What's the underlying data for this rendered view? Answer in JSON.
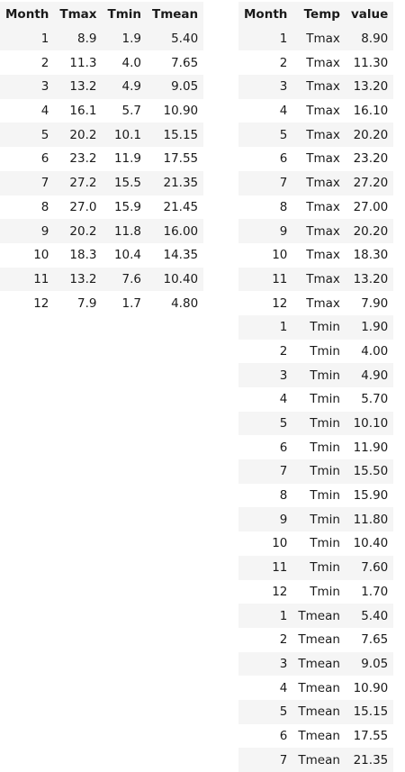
{
  "wide_table": {
    "columns": [
      "Month",
      "Tmax",
      "Tmin",
      "Tmean"
    ],
    "rows": [
      [
        "1",
        "8.9",
        "1.9",
        "5.40"
      ],
      [
        "2",
        "11.3",
        "4.0",
        "7.65"
      ],
      [
        "3",
        "13.2",
        "4.9",
        "9.05"
      ],
      [
        "4",
        "16.1",
        "5.7",
        "10.90"
      ],
      [
        "5",
        "20.2",
        "10.1",
        "15.15"
      ],
      [
        "6",
        "23.2",
        "11.9",
        "17.55"
      ],
      [
        "7",
        "27.2",
        "15.5",
        "21.35"
      ],
      [
        "8",
        "27.0",
        "15.9",
        "21.45"
      ],
      [
        "9",
        "20.2",
        "11.8",
        "16.00"
      ],
      [
        "10",
        "18.3",
        "10.4",
        "14.35"
      ],
      [
        "11",
        "13.2",
        "7.6",
        "10.40"
      ],
      [
        "12",
        "7.9",
        "1.7",
        "4.80"
      ]
    ]
  },
  "long_table": {
    "columns": [
      "Month",
      "Temp",
      "value"
    ],
    "rows": [
      [
        "1",
        "Tmax",
        "8.90"
      ],
      [
        "2",
        "Tmax",
        "11.30"
      ],
      [
        "3",
        "Tmax",
        "13.20"
      ],
      [
        "4",
        "Tmax",
        "16.10"
      ],
      [
        "5",
        "Tmax",
        "20.20"
      ],
      [
        "6",
        "Tmax",
        "23.20"
      ],
      [
        "7",
        "Tmax",
        "27.20"
      ],
      [
        "8",
        "Tmax",
        "27.00"
      ],
      [
        "9",
        "Tmax",
        "20.20"
      ],
      [
        "10",
        "Tmax",
        "18.30"
      ],
      [
        "11",
        "Tmax",
        "13.20"
      ],
      [
        "12",
        "Tmax",
        "7.90"
      ],
      [
        "1",
        "Tmin",
        "1.90"
      ],
      [
        "2",
        "Tmin",
        "4.00"
      ],
      [
        "3",
        "Tmin",
        "4.90"
      ],
      [
        "4",
        "Tmin",
        "5.70"
      ],
      [
        "5",
        "Tmin",
        "10.10"
      ],
      [
        "6",
        "Tmin",
        "11.90"
      ],
      [
        "7",
        "Tmin",
        "15.50"
      ],
      [
        "8",
        "Tmin",
        "15.90"
      ],
      [
        "9",
        "Tmin",
        "11.80"
      ],
      [
        "10",
        "Tmin",
        "10.40"
      ],
      [
        "11",
        "Tmin",
        "7.60"
      ],
      [
        "12",
        "Tmin",
        "1.70"
      ],
      [
        "1",
        "Tmean",
        "5.40"
      ],
      [
        "2",
        "Tmean",
        "7.65"
      ],
      [
        "3",
        "Tmean",
        "9.05"
      ],
      [
        "4",
        "Tmean",
        "10.90"
      ],
      [
        "5",
        "Tmean",
        "15.15"
      ],
      [
        "6",
        "Tmean",
        "17.55"
      ],
      [
        "7",
        "Tmean",
        "21.35"
      ]
    ]
  }
}
